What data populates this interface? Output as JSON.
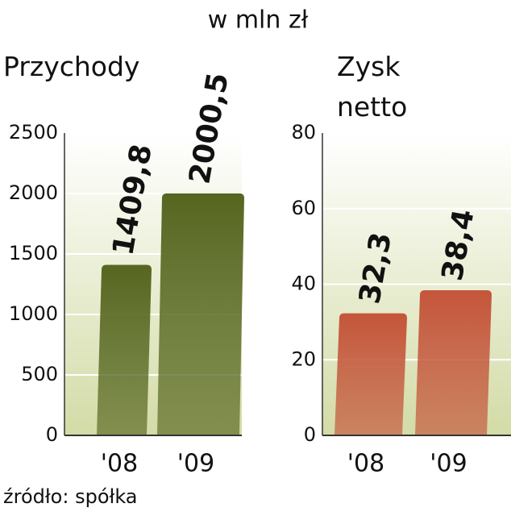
{
  "title": "w mln zł",
  "source": "źródło: spółka",
  "chart_data": [
    {
      "type": "bar",
      "title": "Przychody",
      "categories": [
        "'08",
        "'09"
      ],
      "values": [
        1409.8,
        2000.5
      ],
      "value_labels": [
        "1409,8",
        "2000,5"
      ],
      "color": "#56661f",
      "ylim": [
        0,
        2500
      ],
      "yticks": [
        0,
        500,
        1000,
        1500,
        2000,
        2500
      ],
      "grid": true
    },
    {
      "type": "bar",
      "title": "Zysk netto",
      "categories": [
        "'08",
        "'09"
      ],
      "values": [
        32.3,
        38.4
      ],
      "value_labels": [
        "32,3",
        "38,4"
      ],
      "color": "#c4553a",
      "ylim": [
        0,
        80
      ],
      "yticks": [
        0,
        20,
        40,
        60,
        80
      ],
      "grid": true
    }
  ]
}
